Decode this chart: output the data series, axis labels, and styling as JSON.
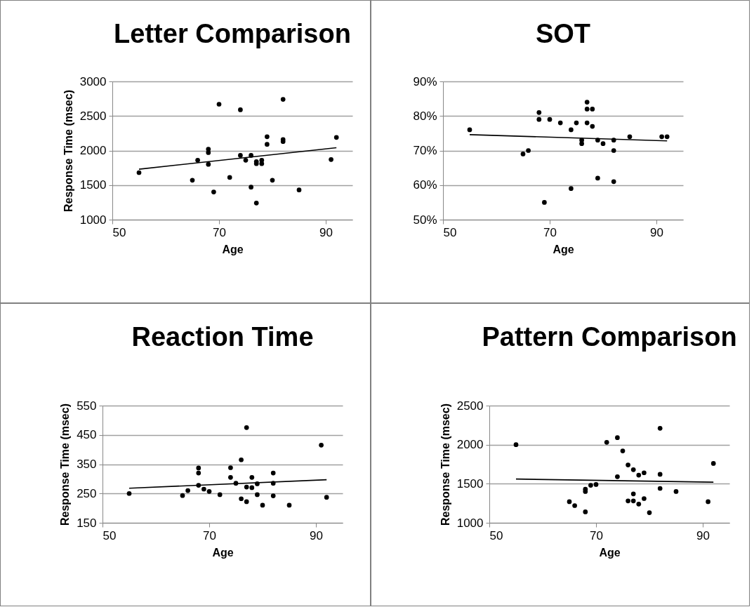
{
  "chart_data": [
    {
      "type": "scatter",
      "title": "Letter Comparison",
      "xlabel": "Age",
      "ylabel": "Response Time (msec)",
      "xlim": [
        50,
        95
      ],
      "xticks": [
        50,
        70,
        90
      ],
      "ylim": [
        1000,
        3000
      ],
      "yticks": [
        1000,
        1500,
        2000,
        2500,
        3000
      ],
      "grid": "y",
      "series": [
        {
          "color": "#000000",
          "marker": "circle",
          "x": [
            55,
            65,
            66,
            68,
            68,
            68,
            69,
            70,
            72,
            74,
            74,
            75,
            76,
            76,
            77,
            77,
            77,
            78,
            78,
            79,
            79,
            80,
            82,
            82,
            82,
            85,
            91,
            92
          ],
          "values": [
            1680,
            1570,
            1860,
            2020,
            1970,
            1800,
            1400,
            2670,
            1610,
            2590,
            1930,
            1860,
            1930,
            1470,
            1840,
            1810,
            1240,
            1860,
            1810,
            2200,
            2090,
            1570,
            2740,
            2160,
            2130,
            1430,
            1870,
            2190
          ]
        },
        {
          "type": "line",
          "color": "#000000",
          "marker": "none",
          "x": [
            55,
            92
          ],
          "values": [
            1730,
            2040
          ]
        }
      ]
    },
    {
      "type": "scatter",
      "title": "SOT",
      "xlabel": "Age",
      "xlim": [
        50,
        95
      ],
      "xticks": [
        50,
        70,
        90
      ],
      "ylim": [
        50,
        90
      ],
      "yticks": [
        {
          "value": 50,
          "label": "50%"
        },
        {
          "value": 60,
          "label": "60%"
        },
        {
          "value": 70,
          "label": "70%"
        },
        {
          "value": 80,
          "label": "80%"
        },
        {
          "value": 90,
          "label": "90%"
        }
      ],
      "grid": "y",
      "series": [
        {
          "color": "#000000",
          "marker": "circle",
          "x": [
            55,
            65,
            66,
            68,
            68,
            69,
            70,
            72,
            74,
            74,
            75,
            76,
            76,
            77,
            77,
            77,
            78,
            78,
            79,
            79,
            80,
            82,
            82,
            82,
            85,
            91,
            92
          ],
          "values": [
            76,
            69,
            70,
            81,
            79,
            55,
            79,
            78,
            76,
            59,
            78,
            72,
            73,
            84,
            82,
            78,
            82,
            77,
            73,
            62,
            72,
            73,
            70,
            61,
            74,
            74,
            74
          ]
        },
        {
          "type": "line",
          "color": "#000000",
          "marker": "none",
          "x": [
            55,
            92
          ],
          "values": [
            74.6,
            72.8
          ]
        }
      ]
    },
    {
      "type": "scatter",
      "title": "Reaction Time",
      "xlabel": "Age",
      "ylabel": "Response Time (msec)",
      "xlim": [
        50,
        95
      ],
      "xticks": [
        50,
        70,
        90
      ],
      "ylim": [
        150,
        550
      ],
      "yticks": [
        150,
        250,
        350,
        450,
        550
      ],
      "grid": "y",
      "series": [
        {
          "color": "#000000",
          "marker": "circle",
          "x": [
            55,
            65,
            66,
            68,
            68,
            68,
            69,
            70,
            72,
            74,
            74,
            75,
            76,
            76,
            77,
            77,
            77,
            78,
            78,
            79,
            79,
            80,
            82,
            82,
            82,
            85,
            91,
            92
          ],
          "values": [
            250,
            243,
            260,
            337,
            320,
            278,
            265,
            257,
            246,
            338,
            305,
            285,
            365,
            232,
            475,
            272,
            222,
            305,
            270,
            283,
            246,
            210,
            320,
            285,
            242,
            210,
            415,
            237
          ]
        },
        {
          "type": "line",
          "color": "#000000",
          "marker": "none",
          "x": [
            55,
            92
          ],
          "values": [
            268,
            297
          ]
        }
      ]
    },
    {
      "type": "scatter",
      "title": "Pattern Comparison",
      "xlabel": "Age",
      "ylabel": "Response Time (msec)",
      "xlim": [
        50,
        95
      ],
      "xticks": [
        50,
        70,
        90
      ],
      "ylim": [
        1000,
        2500
      ],
      "yticks": [
        1000,
        1500,
        2000,
        2500
      ],
      "grid": "y",
      "series": [
        {
          "color": "#000000",
          "marker": "circle",
          "x": [
            55,
            65,
            66,
            68,
            68,
            68,
            69,
            70,
            72,
            74,
            74,
            75,
            76,
            76,
            77,
            77,
            77,
            78,
            78,
            79,
            79,
            80,
            82,
            82,
            82,
            85,
            91,
            92
          ],
          "values": [
            2000,
            1270,
            1220,
            1430,
            1400,
            1140,
            1480,
            1490,
            2030,
            2090,
            1590,
            1920,
            1740,
            1280,
            1680,
            1370,
            1280,
            1610,
            1240,
            1640,
            1310,
            1130,
            2210,
            1620,
            1440,
            1400,
            1270,
            1760
          ]
        },
        {
          "type": "line",
          "color": "#000000",
          "marker": "none",
          "x": [
            55,
            92
          ],
          "values": [
            1560,
            1520
          ]
        }
      ]
    }
  ]
}
